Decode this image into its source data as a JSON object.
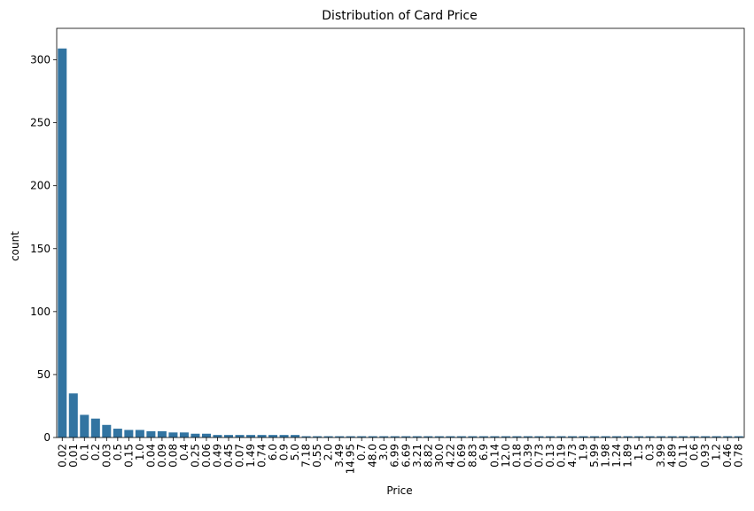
{
  "chart_data": {
    "type": "bar",
    "title": "Distribution of Card Price",
    "xlabel": "Price",
    "ylabel": "count",
    "ylim": [
      0,
      325
    ],
    "yticks": [
      0,
      50,
      100,
      150,
      200,
      250,
      300
    ],
    "bar_color": "#3274a1",
    "grid": false,
    "categories": [
      "0.02",
      "0.01",
      "0.1",
      "0.2",
      "0.03",
      "0.5",
      "0.15",
      "1.0",
      "0.04",
      "0.09",
      "0.08",
      "0.4",
      "0.25",
      "0.06",
      "0.49",
      "0.45",
      "0.07",
      "1.49",
      "0.74",
      "6.0",
      "0.9",
      "5.0",
      "7.18",
      "0.55",
      "2.0",
      "3.49",
      "14.95",
      "0.7",
      "48.0",
      "3.0",
      "6.99",
      "6.69",
      "3.21",
      "8.82",
      "30.0",
      "4.22",
      "0.69",
      "8.83",
      "6.9",
      "0.14",
      "12.0",
      "0.18",
      "0.39",
      "0.73",
      "0.13",
      "0.19",
      "4.73",
      "1.9",
      "5.99",
      "1.98",
      "1.24",
      "1.89",
      "1.5",
      "0.3",
      "3.99",
      "4.89",
      "0.11",
      "0.6",
      "0.93",
      "1.2",
      "0.46",
      "0.78"
    ],
    "values": [
      309,
      35,
      18,
      15,
      10,
      7,
      6,
      6,
      5,
      5,
      4,
      4,
      3,
      3,
      2,
      2,
      2,
      2,
      2,
      2,
      2,
      2,
      1,
      1,
      1,
      1,
      1,
      1,
      1,
      1,
      1,
      1,
      1,
      1,
      1,
      1,
      1,
      1,
      1,
      1,
      1,
      1,
      1,
      1,
      1,
      1,
      1,
      1,
      1,
      1,
      1,
      1,
      1,
      1,
      1,
      1,
      1,
      1,
      1,
      1,
      1,
      1
    ]
  }
}
